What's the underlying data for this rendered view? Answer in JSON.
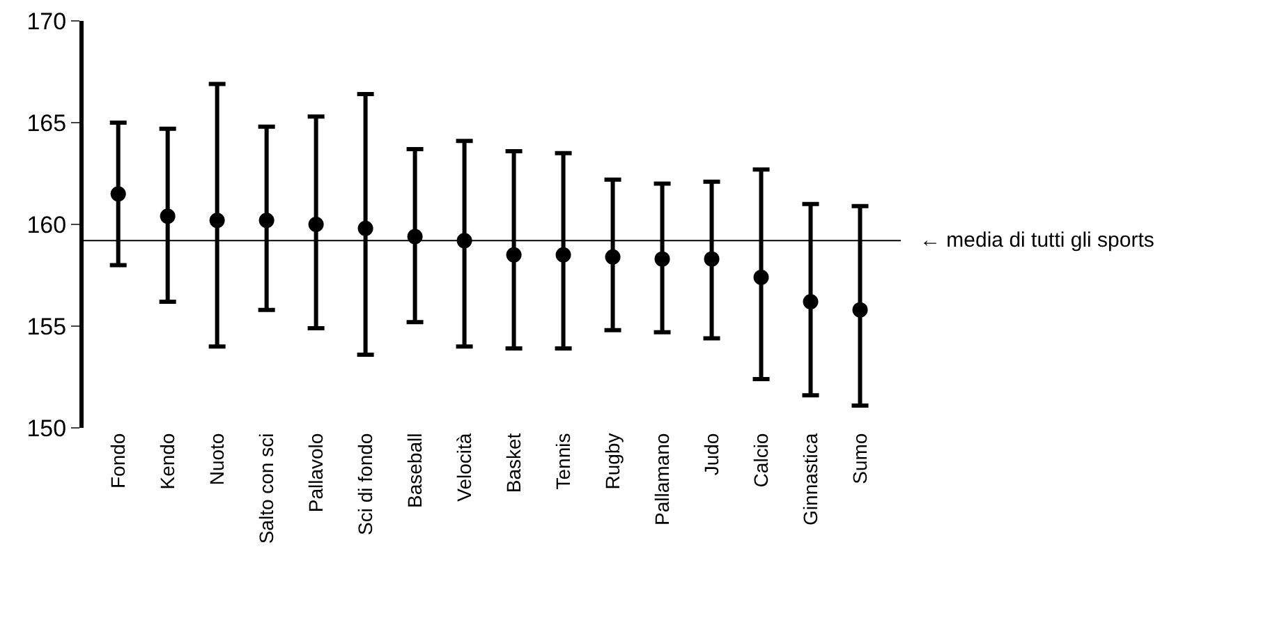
{
  "chart_data": {
    "type": "scatter",
    "categories": [
      "Fondo",
      "Kendo",
      "Nuoto",
      "Salto con sci",
      "Pallavolo",
      "Sci di fondo",
      "Baseball",
      "Velocità",
      "Basket",
      "Tennis",
      "Rugby",
      "Pallamano",
      "Judo",
      "Calcio",
      "Ginnastica",
      "Sumo"
    ],
    "values": [
      161.5,
      160.4,
      160.2,
      160.2,
      160.0,
      159.8,
      159.4,
      159.2,
      158.5,
      158.5,
      158.4,
      158.3,
      158.3,
      157.4,
      156.2,
      155.8
    ],
    "errors": [
      [
        158,
        165
      ],
      [
        156.2,
        164.7
      ],
      [
        154,
        166.9
      ],
      [
        155.8,
        164.8
      ],
      [
        154.9,
        165.3
      ],
      [
        153.6,
        166.4
      ],
      [
        155.2,
        163.7
      ],
      [
        154,
        164.1
      ],
      [
        153.9,
        163.6
      ],
      [
        153.9,
        163.5
      ],
      [
        154.8,
        162.2
      ],
      [
        154.7,
        162
      ],
      [
        154.4,
        162.1
      ],
      [
        152.4,
        162.7
      ],
      [
        151.6,
        161
      ],
      [
        151.1,
        160.9
      ]
    ],
    "color": "#000000",
    "marker": "circle",
    "ylim": [
      150,
      170
    ],
    "yticks": [
      150,
      155,
      160,
      165,
      170
    ],
    "grid": false,
    "ref_lines": [
      {
        "axis": "y",
        "value": 159.2,
        "label": "← media di tutti gli sports",
        "color": "#000000",
        "line_style": "solid"
      }
    ]
  }
}
